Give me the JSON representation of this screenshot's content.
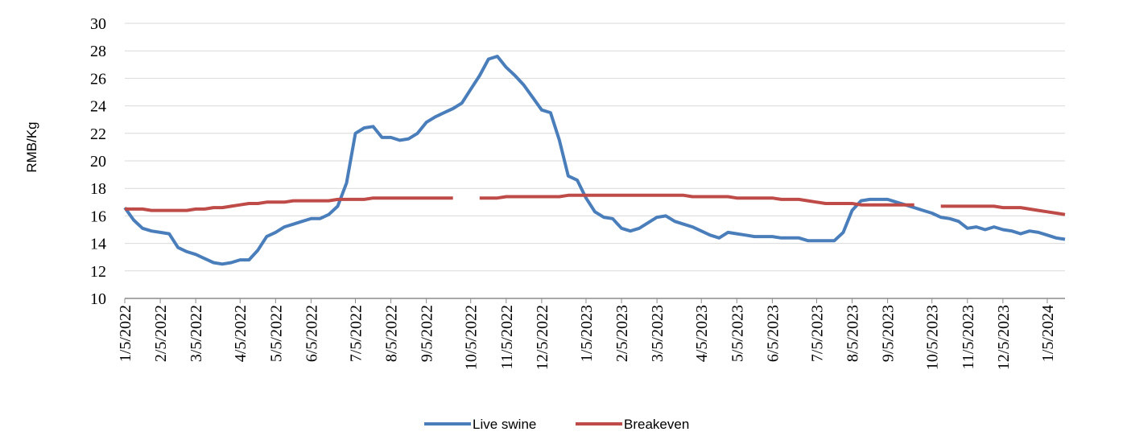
{
  "chart_data": {
    "type": "line",
    "y_label": "RMB/Kg",
    "categories": [
      "1/5/2022",
      null,
      null,
      null,
      "2/5/2022",
      null,
      null,
      null,
      "3/5/2022",
      null,
      null,
      null,
      null,
      "4/5/2022",
      null,
      null,
      null,
      "5/5/2022",
      null,
      null,
      null,
      "6/5/2022",
      null,
      null,
      null,
      null,
      "7/5/2022",
      null,
      null,
      null,
      "8/5/2022",
      null,
      null,
      null,
      "9/5/2022",
      null,
      null,
      null,
      null,
      "10/5/2022",
      null,
      null,
      null,
      "11/5/2022",
      null,
      null,
      null,
      "12/5/2022",
      null,
      null,
      null,
      null,
      "1/5/2023",
      null,
      null,
      null,
      "2/5/2023",
      null,
      null,
      null,
      "3/5/2023",
      null,
      null,
      null,
      null,
      "4/5/2023",
      null,
      null,
      null,
      "5/5/2023",
      null,
      null,
      null,
      "6/5/2023",
      null,
      null,
      null,
      null,
      "7/5/2023",
      null,
      null,
      null,
      "8/5/2023",
      null,
      null,
      null,
      "9/5/2023",
      null,
      null,
      null,
      null,
      "10/5/2023",
      null,
      null,
      null,
      "11/5/2023",
      null,
      null,
      null,
      "12/5/2023",
      null,
      null,
      null,
      null,
      "1/5/2024",
      null,
      null
    ],
    "series": [
      {
        "name": "Live swine",
        "color": "#4a7ebb",
        "values": [
          16.6,
          15.7,
          15.1,
          14.9,
          14.8,
          14.7,
          13.7,
          13.4,
          13.2,
          12.9,
          12.6,
          12.5,
          12.6,
          12.8,
          12.8,
          13.5,
          14.5,
          14.8,
          15.2,
          15.4,
          15.6,
          15.8,
          15.8,
          16.1,
          16.7,
          18.4,
          22.0,
          22.4,
          22.5,
          21.7,
          21.7,
          21.5,
          21.6,
          22.0,
          22.8,
          23.2,
          23.5,
          23.8,
          24.2,
          25.2,
          26.2,
          27.4,
          27.6,
          26.8,
          26.2,
          25.5,
          24.6,
          23.7,
          23.5,
          21.5,
          18.9,
          18.6,
          17.3,
          16.3,
          15.9,
          15.8,
          15.1,
          14.9,
          15.1,
          15.5,
          15.9,
          16.0,
          15.6,
          15.4,
          15.2,
          14.9,
          14.6,
          14.4,
          14.8,
          14.7,
          14.6,
          14.5,
          14.5,
          14.5,
          14.4,
          14.4,
          14.4,
          14.2,
          14.2,
          14.2,
          14.2,
          14.8,
          16.4,
          17.1,
          17.2,
          17.2,
          17.2,
          17.0,
          16.8,
          16.6,
          16.4,
          16.2,
          15.9,
          15.8,
          15.6,
          15.1,
          15.2,
          15.0,
          15.2,
          15.0,
          14.9,
          14.7,
          14.9,
          14.8,
          14.6,
          14.4,
          14.3
        ]
      },
      {
        "name": "Breakeven",
        "color": "#be4b48",
        "values": [
          16.5,
          16.5,
          16.5,
          16.4,
          16.4,
          16.4,
          16.4,
          16.4,
          16.5,
          16.5,
          16.6,
          16.6,
          16.7,
          16.8,
          16.9,
          16.9,
          17.0,
          17.0,
          17.0,
          17.1,
          17.1,
          17.1,
          17.1,
          17.1,
          17.2,
          17.2,
          17.2,
          17.2,
          17.3,
          17.3,
          17.3,
          17.3,
          17.3,
          17.3,
          17.3,
          17.3,
          17.3,
          17.3,
          null,
          null,
          17.3,
          17.3,
          17.3,
          17.4,
          17.4,
          17.4,
          17.4,
          17.4,
          17.4,
          17.4,
          17.5,
          17.5,
          17.5,
          17.5,
          17.5,
          17.5,
          17.5,
          17.5,
          17.5,
          17.5,
          17.5,
          17.5,
          17.5,
          17.5,
          17.4,
          17.4,
          17.4,
          17.4,
          17.4,
          17.3,
          17.3,
          17.3,
          17.3,
          17.3,
          17.2,
          17.2,
          17.2,
          17.1,
          17.0,
          16.9,
          16.9,
          16.9,
          16.9,
          16.8,
          16.8,
          16.8,
          16.8,
          16.8,
          16.8,
          16.8,
          null,
          null,
          16.7,
          16.7,
          16.7,
          16.7,
          16.7,
          16.7,
          16.7,
          16.6,
          16.6,
          16.6,
          16.5,
          16.4,
          16.3,
          16.2,
          16.1
        ]
      }
    ],
    "ylim": [
      10,
      30
    ],
    "yticks": [
      10,
      12,
      14,
      16,
      18,
      20,
      22,
      24,
      26,
      28,
      30
    ],
    "grid": true,
    "legend": "bottom"
  }
}
